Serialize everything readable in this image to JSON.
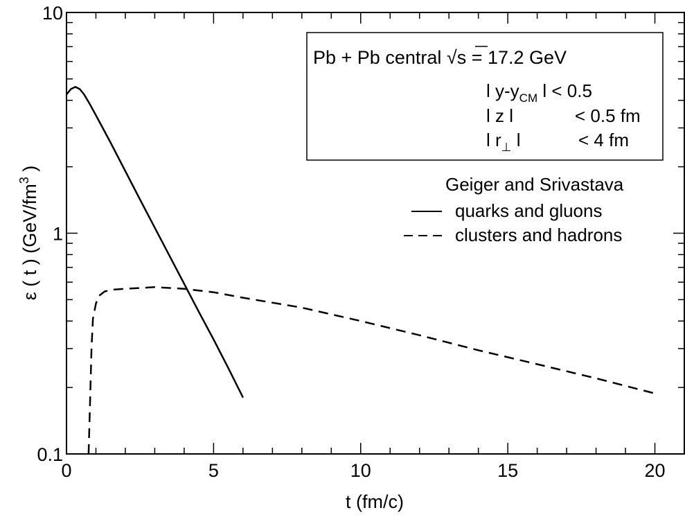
{
  "chart_data": {
    "type": "line",
    "xlabel": "t (fm/c)",
    "ylabel": "ε ( t )  (GeV/fm",
    "ylabel_sup": "3",
    "ylabel_close": " )",
    "xlim": [
      0,
      21
    ],
    "ylim": [
      0.1,
      10
    ],
    "yscale": "log",
    "xticks": [
      {
        "value": 0,
        "label": "0"
      },
      {
        "value": 5,
        "label": "5"
      },
      {
        "value": 10,
        "label": "10"
      },
      {
        "value": 15,
        "label": "15"
      },
      {
        "value": 20,
        "label": "20"
      }
    ],
    "yticks": [
      {
        "value": 0.1,
        "label": "0.1"
      },
      {
        "value": 1,
        "label": "1"
      },
      {
        "value": 10,
        "label": "10"
      }
    ],
    "grid": false,
    "info_box": {
      "line1_prefix": "Pb + Pb central ",
      "line1_sqrt": "√",
      "line1_s": "s",
      "line1_suffix": "  = 17.2 GeV",
      "cut1_left": "l y-y",
      "cut1_sub": "CM",
      "cut1_right": " l < 0.5",
      "cut2_left": "l z l",
      "cut2_right": "< 0.5 fm",
      "cut3_left": "l r",
      "cut3_sub": "⊥",
      "cut3_mid": " l",
      "cut3_right": "< 4 fm"
    },
    "legend": {
      "title": "Geiger and Srivastava",
      "placement": "right"
    },
    "series": [
      {
        "name": "quarks and gluons",
        "style": "solid",
        "color": "#000000",
        "x": [
          0,
          0.15,
          0.3,
          0.45,
          0.6,
          0.8,
          1.0,
          1.5,
          2.0,
          2.5,
          3.0,
          3.5,
          4.0,
          4.5,
          5.0,
          5.5,
          6.0
        ],
        "y": [
          4.25,
          4.5,
          4.6,
          4.5,
          4.25,
          3.83,
          3.42,
          2.57,
          1.91,
          1.42,
          1.06,
          0.79,
          0.59,
          0.44,
          0.33,
          0.245,
          0.18
        ]
      },
      {
        "name": "clusters and hadrons",
        "style": "dashed",
        "color": "#000000",
        "x": [
          0.75,
          0.8,
          0.85,
          0.9,
          1.0,
          1.1,
          1.3,
          1.6,
          2.0,
          3.0,
          4.0,
          5.0,
          6.0,
          8.0,
          10.0,
          12.0,
          14.0,
          16.0,
          18.0,
          20.0
        ],
        "y": [
          0.1,
          0.17,
          0.3,
          0.41,
          0.48,
          0.52,
          0.545,
          0.555,
          0.56,
          0.57,
          0.56,
          0.54,
          0.51,
          0.46,
          0.4,
          0.345,
          0.295,
          0.255,
          0.22,
          0.188
        ]
      }
    ]
  }
}
